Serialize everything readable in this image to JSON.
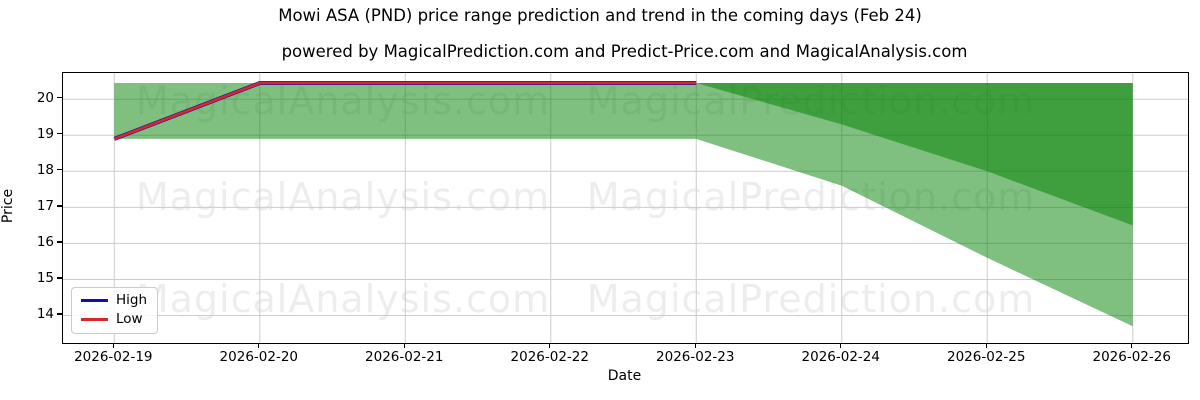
{
  "title": "Mowi ASA (PND) price range prediction and trend in the coming days (Feb 24)",
  "subtitle": "powered by MagicalPrediction.com and Predict-Price.com and MagicalAnalysis.com",
  "watermarks": {
    "left_text": "MagicalAnalysis.com",
    "right_text": "MagicalPrediction.com"
  },
  "legend": {
    "items": [
      {
        "label": "High",
        "color": "#0d10b8"
      },
      {
        "label": "Low",
        "color": "#d62828"
      }
    ]
  },
  "axes": {
    "y_label": "Price",
    "x_label": "Date",
    "y_ticks": [
      20,
      19,
      18,
      17,
      16,
      15,
      14
    ],
    "x_ticks": [
      "2026-02-19",
      "2026-02-20",
      "2026-02-21",
      "2026-02-22",
      "2026-02-23",
      "2026-02-24",
      "2026-02-25",
      "2026-02-26"
    ],
    "grid": true,
    "grid_color": "#cccccc"
  },
  "chart_data": {
    "type": "line",
    "title": "Mowi ASA (PND) price range prediction and trend in the coming days (Feb 24)",
    "xlabel": "Date",
    "ylabel": "Price",
    "x": [
      "2026-02-19",
      "2026-02-20",
      "2026-02-21",
      "2026-02-22",
      "2026-02-23",
      "2026-02-24",
      "2026-02-25",
      "2026-02-26"
    ],
    "ylim": [
      13.25,
      20.72
    ],
    "grid": true,
    "legend_position": "lower left",
    "series": [
      {
        "name": "High",
        "color": "#0d10b8",
        "width": 4,
        "values": [
          18.9,
          20.45,
          20.45,
          20.45,
          20.45,
          null,
          null,
          null
        ]
      },
      {
        "name": "Low",
        "color": "#d62828",
        "width": 2.8,
        "values": [
          18.9,
          20.45,
          20.45,
          20.45,
          20.45,
          null,
          null,
          null
        ]
      }
    ],
    "bands": [
      {
        "name": "overall-prediction-range",
        "fill": "rgba(0,128,0,0.5)",
        "upper": [
          20.45,
          20.45,
          20.45,
          20.45,
          20.45,
          20.45,
          20.45,
          20.45
        ],
        "lower": [
          18.9,
          18.9,
          18.9,
          18.9,
          18.9,
          17.6,
          15.6,
          13.7
        ]
      },
      {
        "name": "high-prediction-range",
        "fill": "rgba(0,128,0,0.5)",
        "upper": [
          null,
          null,
          null,
          null,
          20.45,
          20.45,
          20.45,
          20.45
        ],
        "lower": [
          null,
          null,
          null,
          null,
          20.45,
          19.3,
          18.0,
          16.5
        ]
      }
    ]
  }
}
